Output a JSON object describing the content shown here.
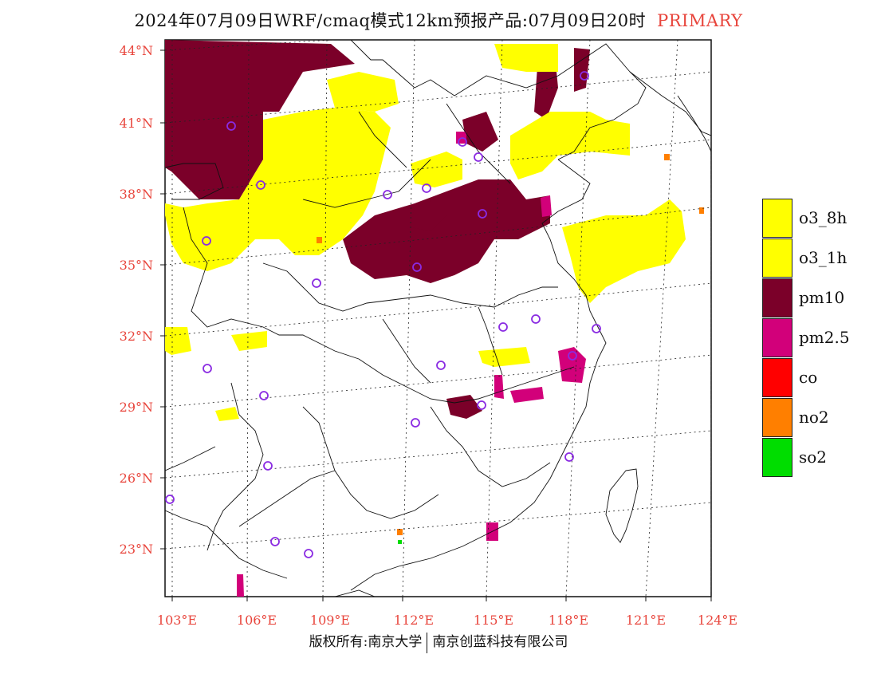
{
  "title": {
    "text": "2024年07月09日WRF/cmaq模式12km预报产品:07月09日20时",
    "tag": "PRIMARY"
  },
  "lat_labels": [
    "44°N",
    "41°N",
    "38°N",
    "35°N",
    "32°N",
    "29°N",
    "26°N",
    "23°N"
  ],
  "lon_labels": [
    "103°E",
    "106°E",
    "109°E",
    "112°E",
    "115°E",
    "118°E",
    "121°E",
    "124°E"
  ],
  "legend": [
    {
      "label": "o3_8h",
      "color": "#ffff00"
    },
    {
      "label": "o3_1h",
      "color": "#ffff00"
    },
    {
      "label": "pm10",
      "color": "#7b0029"
    },
    {
      "label": "pm2.5",
      "color": "#d2007a"
    },
    {
      "label": "co",
      "color": "#ff0000"
    },
    {
      "label": "no2",
      "color": "#ff7f00"
    },
    {
      "label": "so2",
      "color": "#00dd00"
    }
  ],
  "footer": {
    "left": "版权所有:南京大学",
    "right": "南京创蓝科技有限公司"
  }
}
